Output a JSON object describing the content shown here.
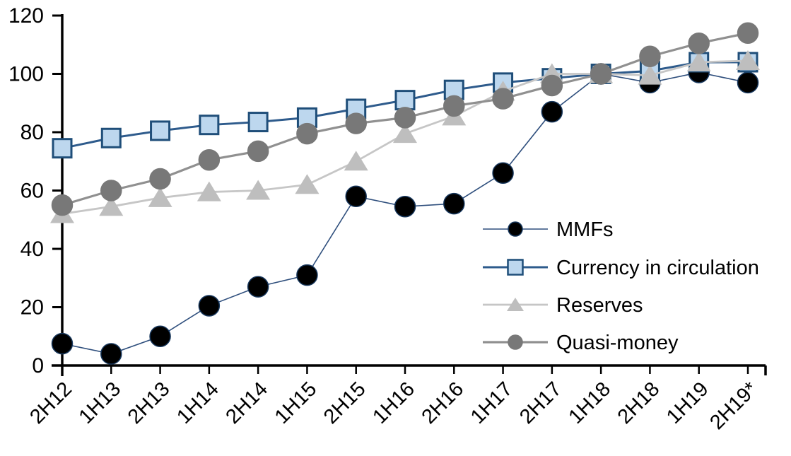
{
  "figure": {
    "background": "#ffffff",
    "axis_color": "#000000"
  },
  "chart_data": {
    "type": "line",
    "title": "",
    "xlabel": "",
    "ylabel": "",
    "grid": false,
    "categories": [
      "2H12",
      "1H13",
      "2H13",
      "1H14",
      "2H14",
      "1H15",
      "2H15",
      "1H16",
      "2H16",
      "1H17",
      "2H17",
      "1H18",
      "2H18",
      "1H19",
      "2H19*"
    ],
    "y_axis": {
      "min": 0,
      "max": 120,
      "step": 20,
      "tick_labels": [
        "0",
        "20",
        "40",
        "60",
        "80",
        "100",
        "120"
      ]
    },
    "x_axis": {
      "label_rotation": -45
    },
    "legend": {
      "position": "inside-right",
      "items": [
        "MMFs",
        "Currency in circulation",
        "Reserves",
        "Quasi-money"
      ]
    },
    "series": [
      {
        "name": "MMFs",
        "marker": "circle",
        "marker_color": "#000000",
        "marker_border": "#16365c",
        "line_color": "#2f4f7d",
        "values": [
          7.5,
          4,
          10,
          20.5,
          27,
          31,
          58,
          54.5,
          55.5,
          66,
          87,
          100,
          97,
          100.5,
          97
        ]
      },
      {
        "name": "Currency in circulation",
        "marker": "square",
        "marker_color": "#bdd7ee",
        "marker_border": "#1f4e79",
        "line_color": "#2e5b8c",
        "values": [
          74.5,
          78,
          80.5,
          82.5,
          83.5,
          85,
          88,
          91,
          94.5,
          97,
          98.5,
          100,
          101,
          104,
          104
        ]
      },
      {
        "name": "Reserves",
        "marker": "triangle",
        "marker_color": "#bebebe",
        "marker_border": "#bebebe",
        "line_color": "#c6c6c6",
        "values": [
          52,
          54.5,
          57.5,
          59.5,
          60,
          62,
          70,
          79.5,
          85.5,
          94,
          100,
          100,
          99.5,
          104,
          104.5
        ]
      },
      {
        "name": "Quasi-money",
        "marker": "circle",
        "marker_color": "#787878",
        "marker_border": "#787878",
        "line_color": "#909090",
        "values": [
          55,
          60,
          64,
          70.5,
          73.5,
          79.5,
          83,
          85,
          89,
          91.5,
          96,
          100,
          106,
          110.5,
          114
        ]
      }
    ]
  }
}
